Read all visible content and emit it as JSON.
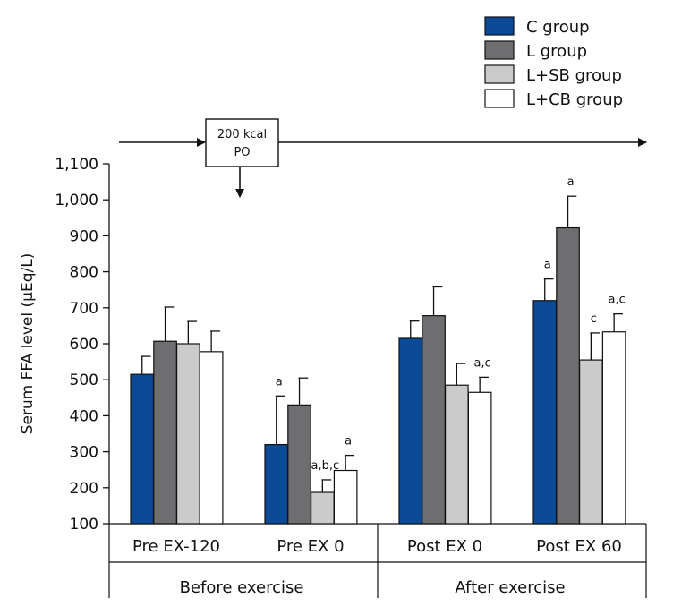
{
  "chart_data": {
    "type": "bar",
    "title": "",
    "xlabel": "",
    "ylabel": "Serum FFA level (μEq/L)",
    "ylim": [
      100,
      1100
    ],
    "yticks": [
      {
        "value": 100,
        "label": "100"
      },
      {
        "value": 200,
        "label": "200"
      },
      {
        "value": 300,
        "label": "300"
      },
      {
        "value": 400,
        "label": "400"
      },
      {
        "value": 500,
        "label": "500"
      },
      {
        "value": 600,
        "label": "600"
      },
      {
        "value": 700,
        "label": "700"
      },
      {
        "value": 800,
        "label": "800"
      },
      {
        "value": 900,
        "label": "900"
      },
      {
        "value": 1000,
        "label": "1,000"
      },
      {
        "value": 1100,
        "label": "1,100"
      }
    ],
    "categories": [
      "Pre EX-120",
      "Pre EX 0",
      "Post EX 0",
      "Post EX 60"
    ],
    "groups": [
      {
        "label": "Before exercise",
        "categories": [
          "Pre EX-120",
          "Pre EX 0"
        ]
      },
      {
        "label": "After exercise",
        "categories": [
          "Post EX 0",
          "Post EX 60"
        ]
      }
    ],
    "series": [
      {
        "name": "C group",
        "color": "#0a4a96",
        "values": [
          515,
          320,
          615,
          720
        ],
        "errors": [
          50,
          135,
          48,
          60
        ],
        "sig": [
          "",
          "a",
          "",
          "a"
        ]
      },
      {
        "name": "L group",
        "color": "#6e6e70",
        "values": [
          607,
          430,
          678,
          922
        ],
        "errors": [
          95,
          75,
          80,
          88
        ],
        "sig": [
          "",
          "",
          "",
          "a"
        ]
      },
      {
        "name": "L+SB group",
        "color": "#cbcbcb",
        "values": [
          600,
          187,
          485,
          555
        ],
        "errors": [
          62,
          35,
          60,
          75
        ],
        "sig": [
          "",
          "a,b,c",
          "",
          "c"
        ]
      },
      {
        "name": "L+CB group",
        "color": "#ffffff",
        "values": [
          578,
          248,
          465,
          633
        ],
        "errors": [
          57,
          42,
          42,
          50
        ],
        "sig": [
          "",
          "a",
          "a,c",
          "a,c"
        ]
      }
    ],
    "annotation": {
      "line1": "200 kcal",
      "line2": "PO"
    },
    "legend_position": "top-right"
  }
}
